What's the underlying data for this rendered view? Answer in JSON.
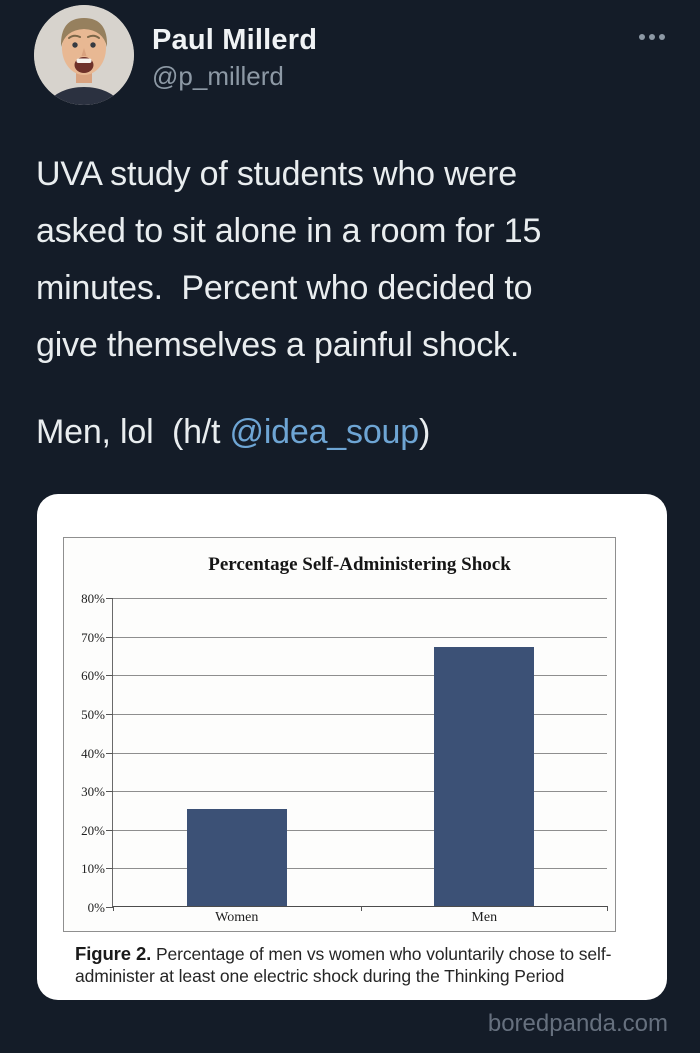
{
  "header": {
    "name": "Paul Millerd",
    "handle": "@p_millerd"
  },
  "tweet": {
    "body": "UVA study of students who were\nasked to sit alone in a room for 15\nminutes.  Percent who decided to\ngive themselves a painful shock.",
    "line2_prefix": "Men, lol  (h/t ",
    "mention": "@idea_soup",
    "line2_suffix": ")"
  },
  "figure": {
    "caption_label": "Figure 2.",
    "caption_text": " Percentage of men vs women who voluntarily chose to self-administer at least one electric shock during the Thinking Period"
  },
  "watermark": "boredpanda.com",
  "chart_data": {
    "type": "bar",
    "title": "Percentage Self-Administering Shock",
    "categories": [
      "Women",
      "Men"
    ],
    "values": [
      25,
      67
    ],
    "value_unit": "percent",
    "xlabel": "",
    "ylabel": "",
    "ylim": [
      0,
      80
    ],
    "ytick_step": 10,
    "ytick_labels": [
      "0%",
      "10%",
      "20%",
      "30%",
      "40%",
      "50%",
      "60%",
      "70%",
      "80%"
    ],
    "grid": true,
    "legend": false,
    "bar_color": "#3c5176"
  },
  "colors": {
    "background": "#141c28",
    "card": "#ffffff",
    "bar": "#3c5176",
    "link": "#6ea5d4",
    "text_primary": "#e9edef",
    "text_secondary": "#8d99a5",
    "watermark": "#66707e"
  }
}
